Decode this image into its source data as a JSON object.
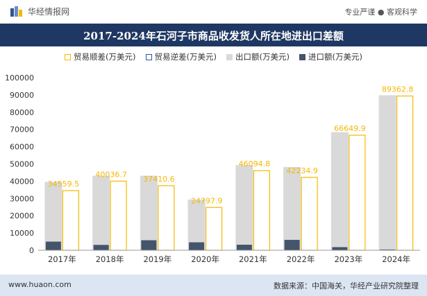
{
  "header": {
    "brand": "华经情报网",
    "slogan": "专业严谨 ● 客观科学"
  },
  "footer": {
    "url": "www.huaon.com",
    "source": "数据来源：中国海关，华经产业研究院整理"
  },
  "colors": {
    "title_bg": "#1f3863",
    "footer_bg": "#dce6f2",
    "trade_surplus": "#f5b800",
    "trade_deficit": "#2e5597",
    "exports": "#d9d9d9",
    "imports": "#44546a"
  },
  "chart_data": {
    "type": "bar",
    "title": "2017-2024年石河子市商品收发货人所在地进出口差额",
    "categories": [
      "2017年",
      "2018年",
      "2019年",
      "2020年",
      "2021年",
      "2022年",
      "2023年",
      "2024年"
    ],
    "series": [
      {
        "name": "贸易顺差(万美元)",
        "values": [
          34559.5,
          40036.7,
          37410.6,
          24797.9,
          46094.8,
          42234.9,
          66649.9,
          89362.8
        ],
        "style": "outline"
      },
      {
        "name": "贸易逆差(万美元)",
        "values": [
          0,
          0,
          0,
          0,
          0,
          0,
          0,
          0
        ],
        "style": "outline"
      },
      {
        "name": "出口额(万美元)",
        "values": [
          39600,
          43100,
          43200,
          29400,
          49300,
          48200,
          68400,
          89800
        ]
      },
      {
        "name": "进口额(万美元)",
        "values": [
          5000,
          3100,
          5800,
          4600,
          3200,
          6000,
          1800,
          440
        ]
      }
    ],
    "data_labels": [
      "34559.5",
      "40036.7",
      "37410.6",
      "24797.9",
      "46094.8",
      "42234.9",
      "66649.9",
      "89362.8"
    ],
    "y_ticks": [
      "0",
      "10000",
      "20000",
      "30000",
      "40000",
      "50000",
      "60000",
      "70000",
      "80000",
      "90000",
      "100000"
    ],
    "ylim": [
      0,
      100000
    ],
    "xlabel": "",
    "ylabel": "",
    "grid": false,
    "legend_position": "top"
  }
}
